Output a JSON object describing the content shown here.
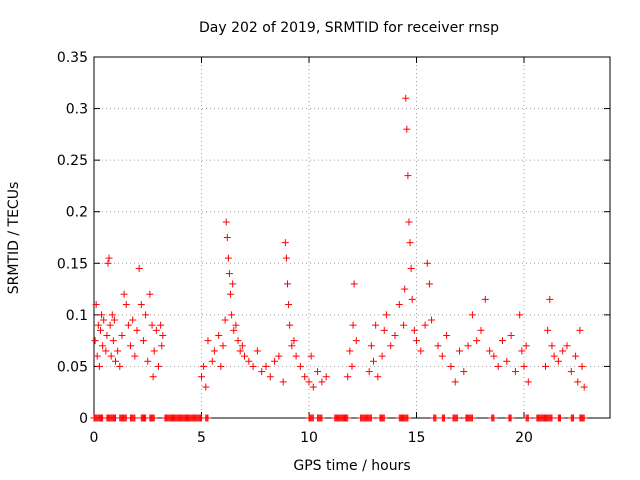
{
  "chart_data": {
    "type": "scatter",
    "title": "Day 202 of 2019, SRMTID for receiver rnsp",
    "xlabel": "GPS time / hours",
    "ylabel": "SRMTID / TECUs",
    "xlim": [
      0,
      24
    ],
    "ylim": [
      0,
      0.35
    ],
    "x_ticks": [
      0,
      5,
      10,
      15,
      20
    ],
    "x_tick_labels": [
      "0",
      "5",
      "10",
      "15",
      "20"
    ],
    "y_ticks": [
      0,
      0.05,
      0.1,
      0.15,
      0.2,
      0.25,
      0.3,
      0.35
    ],
    "y_tick_labels": [
      "0",
      "0.05",
      "0.1",
      "0.15",
      "0.2",
      "0.25",
      "0.3",
      "0.35"
    ],
    "grid": true,
    "marker": "plus",
    "color": "#ff0000",
    "series": [
      {
        "name": "SRMTID",
        "points": [
          [
            0.05,
            0.075
          ],
          [
            0.1,
            0.11
          ],
          [
            0.15,
            0.06
          ],
          [
            0.2,
            0.09
          ],
          [
            0.25,
            0.05
          ],
          [
            0.3,
            0.085
          ],
          [
            0.35,
            0.1
          ],
          [
            0.4,
            0.07
          ],
          [
            0.45,
            0.095
          ],
          [
            0.55,
            0.065
          ],
          [
            0.6,
            0.08
          ],
          [
            0.65,
            0.15
          ],
          [
            0.7,
            0.155
          ],
          [
            0.75,
            0.09
          ],
          [
            0.8,
            0.06
          ],
          [
            0.85,
            0.1
          ],
          [
            0.9,
            0.075
          ],
          [
            0.95,
            0.095
          ],
          [
            1.0,
            0.055
          ],
          [
            1.1,
            0.065
          ],
          [
            1.2,
            0.05
          ],
          [
            1.3,
            0.08
          ],
          [
            1.4,
            0.12
          ],
          [
            1.5,
            0.11
          ],
          [
            1.6,
            0.09
          ],
          [
            1.7,
            0.07
          ],
          [
            1.8,
            0.095
          ],
          [
            1.9,
            0.06
          ],
          [
            2.0,
            0.085
          ],
          [
            2.1,
            0.145
          ],
          [
            2.2,
            0.11
          ],
          [
            2.3,
            0.075
          ],
          [
            2.4,
            0.1
          ],
          [
            2.5,
            0.055
          ],
          [
            2.6,
            0.12
          ],
          [
            2.7,
            0.09
          ],
          [
            2.75,
            0.04
          ],
          [
            2.8,
            0.065
          ],
          [
            2.9,
            0.085
          ],
          [
            3.0,
            0.05
          ],
          [
            3.1,
            0.09
          ],
          [
            3.15,
            0.07
          ],
          [
            3.2,
            0.08
          ],
          [
            5.0,
            0.04
          ],
          [
            5.1,
            0.05
          ],
          [
            5.2,
            0.03
          ],
          [
            5.3,
            0.075
          ],
          [
            5.5,
            0.055
          ],
          [
            5.6,
            0.065
          ],
          [
            5.8,
            0.08
          ],
          [
            5.9,
            0.05
          ],
          [
            6.0,
            0.07
          ],
          [
            6.1,
            0.095
          ],
          [
            6.15,
            0.19
          ],
          [
            6.2,
            0.175
          ],
          [
            6.25,
            0.155
          ],
          [
            6.3,
            0.14
          ],
          [
            6.35,
            0.12
          ],
          [
            6.4,
            0.1
          ],
          [
            6.45,
            0.13
          ],
          [
            6.5,
            0.085
          ],
          [
            6.6,
            0.09
          ],
          [
            6.7,
            0.075
          ],
          [
            6.8,
            0.065
          ],
          [
            6.9,
            0.07
          ],
          [
            7.0,
            0.06
          ],
          [
            7.2,
            0.055
          ],
          [
            7.4,
            0.05
          ],
          [
            7.6,
            0.065
          ],
          [
            7.8,
            0.045
          ],
          [
            8.0,
            0.05
          ],
          [
            8.2,
            0.04
          ],
          [
            8.4,
            0.055
          ],
          [
            8.6,
            0.06
          ],
          [
            8.8,
            0.035
          ],
          [
            8.9,
            0.17
          ],
          [
            8.95,
            0.155
          ],
          [
            9.0,
            0.13
          ],
          [
            9.05,
            0.11
          ],
          [
            9.1,
            0.09
          ],
          [
            9.2,
            0.07
          ],
          [
            9.3,
            0.075
          ],
          [
            9.4,
            0.06
          ],
          [
            9.6,
            0.05
          ],
          [
            9.8,
            0.04
          ],
          [
            10.0,
            0.035
          ],
          [
            10.1,
            0.06
          ],
          [
            10.2,
            0.03
          ],
          [
            10.4,
            0.045
          ],
          [
            10.6,
            0.035
          ],
          [
            10.8,
            0.04
          ],
          [
            11.8,
            0.04
          ],
          [
            11.9,
            0.065
          ],
          [
            12.0,
            0.05
          ],
          [
            12.05,
            0.09
          ],
          [
            12.1,
            0.13
          ],
          [
            12.2,
            0.075
          ],
          [
            12.8,
            0.045
          ],
          [
            12.9,
            0.07
          ],
          [
            13.0,
            0.055
          ],
          [
            13.1,
            0.09
          ],
          [
            13.2,
            0.04
          ],
          [
            13.4,
            0.06
          ],
          [
            13.5,
            0.085
          ],
          [
            13.6,
            0.1
          ],
          [
            13.8,
            0.07
          ],
          [
            14.0,
            0.08
          ],
          [
            14.2,
            0.11
          ],
          [
            14.4,
            0.09
          ],
          [
            14.45,
            0.125
          ],
          [
            14.5,
            0.31
          ],
          [
            14.55,
            0.28
          ],
          [
            14.6,
            0.235
          ],
          [
            14.65,
            0.19
          ],
          [
            14.7,
            0.17
          ],
          [
            14.75,
            0.145
          ],
          [
            14.8,
            0.115
          ],
          [
            14.9,
            0.085
          ],
          [
            15.0,
            0.075
          ],
          [
            15.2,
            0.065
          ],
          [
            15.4,
            0.09
          ],
          [
            15.5,
            0.15
          ],
          [
            15.6,
            0.13
          ],
          [
            15.7,
            0.095
          ],
          [
            16.0,
            0.07
          ],
          [
            16.2,
            0.06
          ],
          [
            16.4,
            0.08
          ],
          [
            16.6,
            0.05
          ],
          [
            16.8,
            0.035
          ],
          [
            17.0,
            0.065
          ],
          [
            17.2,
            0.045
          ],
          [
            17.4,
            0.07
          ],
          [
            17.6,
            0.1
          ],
          [
            17.8,
            0.075
          ],
          [
            18.0,
            0.085
          ],
          [
            18.2,
            0.115
          ],
          [
            18.4,
            0.065
          ],
          [
            18.6,
            0.06
          ],
          [
            18.8,
            0.05
          ],
          [
            19.0,
            0.075
          ],
          [
            19.2,
            0.055
          ],
          [
            19.4,
            0.08
          ],
          [
            19.6,
            0.045
          ],
          [
            19.8,
            0.1
          ],
          [
            19.9,
            0.065
          ],
          [
            20.0,
            0.05
          ],
          [
            20.1,
            0.07
          ],
          [
            20.2,
            0.035
          ],
          [
            21.0,
            0.05
          ],
          [
            21.1,
            0.085
          ],
          [
            21.2,
            0.115
          ],
          [
            21.3,
            0.07
          ],
          [
            21.4,
            0.06
          ],
          [
            21.6,
            0.055
          ],
          [
            21.8,
            0.065
          ],
          [
            22.0,
            0.07
          ],
          [
            22.2,
            0.045
          ],
          [
            22.4,
            0.06
          ],
          [
            22.5,
            0.035
          ],
          [
            22.6,
            0.085
          ],
          [
            22.7,
            0.05
          ],
          [
            22.8,
            0.03
          ]
        ],
        "zero_ranges": [
          [
            0.0,
            0.4
          ],
          [
            0.6,
            1.0
          ],
          [
            1.2,
            1.5
          ],
          [
            1.7,
            1.9
          ],
          [
            2.2,
            2.4
          ],
          [
            2.6,
            2.8
          ],
          [
            3.3,
            5.0
          ],
          [
            5.2,
            5.3
          ],
          [
            10.0,
            10.2
          ],
          [
            10.4,
            10.6
          ],
          [
            11.2,
            11.8
          ],
          [
            12.4,
            12.9
          ],
          [
            13.3,
            13.5
          ],
          [
            14.2,
            14.6
          ],
          [
            15.8,
            15.9
          ],
          [
            16.2,
            16.3
          ],
          [
            16.7,
            16.9
          ],
          [
            17.3,
            17.6
          ],
          [
            18.5,
            18.6
          ],
          [
            19.3,
            19.4
          ],
          [
            20.1,
            20.2
          ],
          [
            20.6,
            21.3
          ],
          [
            21.6,
            21.7
          ],
          [
            22.2,
            22.3
          ],
          [
            22.6,
            22.8
          ]
        ]
      }
    ]
  }
}
